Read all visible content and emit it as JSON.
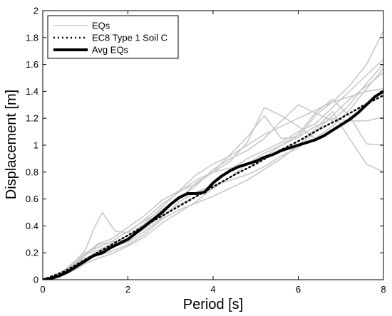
{
  "chart_data": {
    "type": "line",
    "title": "",
    "xlabel": "Period [s]",
    "ylabel": "Displacement [m]",
    "xlim": [
      0,
      8
    ],
    "ylim": [
      0,
      2
    ],
    "xticks": [
      0,
      2,
      4,
      6,
      8
    ],
    "xtick_labels": [
      "0",
      "2",
      "4",
      "6",
      "8"
    ],
    "yticks": [
      0,
      0.2,
      0.4,
      0.6,
      0.8,
      1,
      1.2,
      1.4,
      1.6,
      1.8,
      2
    ],
    "ytick_labels": [
      "0",
      "0.2",
      "0.4",
      "0.6",
      "0.8",
      "1",
      "1.2",
      "1.4",
      "1.6",
      "1.8",
      "2"
    ],
    "grid": false,
    "legend_position": "top-left",
    "legend": [
      "EQs",
      "EC8 Type 1 Soil C",
      "Avg EQs"
    ],
    "colors": {
      "eqs": "#c8c8c8",
      "ec8": "#000000",
      "avg": "#000000"
    },
    "series": [
      {
        "name": "EQs",
        "style": "thin-gray",
        "x": [
          0,
          0.2,
          0.5,
          0.8,
          1.0,
          1.2,
          1.4,
          1.7,
          2.0,
          2.4,
          2.8,
          3.2,
          3.6,
          4.0,
          4.4,
          4.8,
          5.2,
          5.6,
          6.0,
          6.4,
          6.8,
          7.2,
          7.6,
          8.0
        ],
        "y": [
          0,
          0.02,
          0.07,
          0.15,
          0.22,
          0.38,
          0.5,
          0.36,
          0.35,
          0.45,
          0.56,
          0.65,
          0.74,
          0.8,
          0.93,
          1.06,
          1.22,
          1.05,
          1.06,
          1.22,
          1.32,
          1.44,
          1.6,
          1.85
        ]
      },
      {
        "name": "EQs",
        "style": "thin-gray",
        "x": [
          0,
          0.2,
          0.5,
          0.8,
          1.0,
          1.3,
          1.6,
          2.0,
          2.4,
          2.8,
          3.2,
          3.6,
          4.0,
          4.4,
          4.8,
          5.2,
          5.6,
          6.0,
          6.4,
          6.8,
          7.2,
          7.6,
          8.0
        ],
        "y": [
          0,
          0.01,
          0.05,
          0.12,
          0.19,
          0.27,
          0.3,
          0.39,
          0.48,
          0.59,
          0.66,
          0.71,
          0.8,
          0.88,
          1.02,
          1.28,
          1.22,
          1.14,
          1.05,
          1.14,
          1.26,
          1.42,
          1.57
        ]
      },
      {
        "name": "EQs",
        "style": "thin-gray",
        "x": [
          0,
          0.2,
          0.5,
          0.8,
          1.0,
          1.3,
          1.6,
          2.0,
          2.4,
          2.8,
          3.2,
          3.6,
          4.0,
          4.4,
          4.8,
          5.2,
          5.6,
          6.0,
          6.4,
          6.8,
          7.2,
          7.6,
          8.0
        ],
        "y": [
          0,
          0.01,
          0.04,
          0.09,
          0.14,
          0.2,
          0.23,
          0.31,
          0.4,
          0.5,
          0.6,
          0.72,
          0.8,
          0.83,
          0.86,
          0.91,
          1.0,
          1.08,
          1.24,
          1.34,
          1.22,
          1.01,
          1.0
        ]
      },
      {
        "name": "EQs",
        "style": "thin-gray",
        "x": [
          0,
          0.2,
          0.5,
          0.8,
          1.0,
          1.3,
          1.6,
          2.0,
          2.4,
          2.8,
          3.2,
          3.6,
          4.0,
          4.4,
          4.8,
          5.2,
          5.6,
          6.0,
          6.4,
          6.8,
          7.2,
          7.6,
          8.0
        ],
        "y": [
          0,
          0.01,
          0.05,
          0.1,
          0.15,
          0.18,
          0.21,
          0.26,
          0.34,
          0.45,
          0.52,
          0.57,
          0.62,
          0.68,
          0.74,
          0.82,
          0.9,
          1.0,
          1.12,
          1.25,
          1.05,
          0.86,
          0.8
        ]
      },
      {
        "name": "EQs",
        "style": "thin-gray",
        "x": [
          0,
          0.2,
          0.5,
          0.8,
          1.0,
          1.3,
          1.6,
          2.0,
          2.4,
          2.8,
          3.2,
          3.6,
          4.0,
          4.4,
          4.8,
          5.2,
          5.6,
          6.0,
          6.4,
          6.8,
          7.2,
          7.6,
          8.0
        ],
        "y": [
          0,
          0.02,
          0.06,
          0.14,
          0.2,
          0.24,
          0.28,
          0.36,
          0.44,
          0.52,
          0.6,
          0.7,
          0.82,
          0.9,
          0.96,
          1.05,
          1.18,
          1.3,
          1.24,
          1.18,
          1.3,
          1.46,
          1.6
        ]
      },
      {
        "name": "EQs",
        "style": "thin-gray",
        "x": [
          0,
          0.2,
          0.5,
          0.8,
          1.0,
          1.3,
          1.6,
          2.0,
          2.4,
          2.8,
          3.2,
          3.6,
          4.0,
          4.4,
          4.8,
          5.2,
          5.6,
          6.0,
          6.4,
          6.8,
          7.2,
          7.6,
          8.0
        ],
        "y": [
          0,
          0.01,
          0.05,
          0.11,
          0.16,
          0.21,
          0.24,
          0.28,
          0.36,
          0.46,
          0.58,
          0.65,
          0.7,
          0.74,
          0.78,
          0.84,
          0.92,
          0.98,
          1.1,
          1.22,
          1.34,
          1.44,
          1.54
        ]
      },
      {
        "name": "EQs",
        "style": "thin-gray",
        "x": [
          0,
          0.2,
          0.5,
          0.8,
          1.0,
          1.3,
          1.6,
          2.0,
          2.4,
          2.8,
          3.2,
          3.6,
          4.0,
          4.4,
          4.8,
          5.2,
          5.6,
          6.0,
          6.4,
          6.8,
          7.2,
          7.6,
          8.0
        ],
        "y": [
          0,
          0.02,
          0.06,
          0.13,
          0.19,
          0.22,
          0.26,
          0.33,
          0.42,
          0.54,
          0.66,
          0.78,
          0.86,
          0.92,
          1.0,
          1.08,
          1.14,
          1.2,
          1.26,
          1.32,
          1.36,
          1.4,
          1.42
        ]
      },
      {
        "name": "EQs",
        "style": "thin-gray",
        "x": [
          0,
          0.2,
          0.5,
          0.8,
          1.0,
          1.3,
          1.6,
          2.0,
          2.4,
          2.8,
          3.2,
          3.6,
          4.0,
          4.4,
          4.8,
          5.2,
          5.6,
          6.0,
          6.4,
          6.8,
          7.2,
          7.6,
          8.0
        ],
        "y": [
          0,
          0.01,
          0.04,
          0.08,
          0.12,
          0.16,
          0.19,
          0.25,
          0.32,
          0.42,
          0.5,
          0.58,
          0.68,
          0.76,
          0.86,
          0.94,
          1.0,
          1.06,
          1.14,
          1.2,
          1.18,
          1.18,
          1.21
        ]
      },
      {
        "name": "EQs",
        "style": "thin-gray",
        "x": [
          0,
          0.2,
          0.5,
          0.8,
          1.0,
          1.3,
          1.6,
          2.0,
          2.4,
          2.8,
          3.2,
          3.6,
          4.0,
          4.4,
          4.8,
          5.2,
          5.6,
          6.0,
          6.4,
          6.8,
          7.2,
          7.6,
          8.0
        ],
        "y": [
          0,
          0.01,
          0.05,
          0.12,
          0.18,
          0.26,
          0.28,
          0.3,
          0.38,
          0.48,
          0.56,
          0.62,
          0.72,
          0.82,
          0.9,
          0.96,
          1.02,
          1.1,
          1.16,
          1.28,
          1.4,
          1.52,
          1.64
        ]
      },
      {
        "name": "EC8 Type 1 Soil C",
        "style": "dotted",
        "x": [
          0,
          0.5,
          1,
          1.5,
          2,
          2.5,
          3,
          3.5,
          4,
          4.5,
          5,
          5.5,
          6,
          6.5,
          7,
          7.5,
          8
        ],
        "y": [
          0,
          0.06,
          0.15,
          0.24,
          0.33,
          0.42,
          0.51,
          0.6,
          0.69,
          0.78,
          0.86,
          0.95,
          1.03,
          1.12,
          1.2,
          1.29,
          1.37
        ]
      },
      {
        "name": "Avg EQs",
        "style": "thick",
        "x": [
          0,
          0.2,
          0.4,
          0.6,
          0.8,
          1.0,
          1.2,
          1.4,
          1.6,
          1.8,
          2.0,
          2.2,
          2.4,
          2.6,
          2.8,
          3.0,
          3.2,
          3.4,
          3.6,
          3.8,
          4.0,
          4.2,
          4.4,
          4.6,
          4.8,
          5.0,
          5.2,
          5.4,
          5.6,
          5.8,
          6.0,
          6.2,
          6.4,
          6.6,
          6.8,
          7.0,
          7.2,
          7.4,
          7.6,
          7.8,
          8.0
        ],
        "y": [
          0,
          0.01,
          0.03,
          0.06,
          0.1,
          0.14,
          0.18,
          0.2,
          0.24,
          0.27,
          0.3,
          0.35,
          0.4,
          0.45,
          0.5,
          0.56,
          0.61,
          0.64,
          0.64,
          0.65,
          0.72,
          0.77,
          0.81,
          0.84,
          0.86,
          0.88,
          0.91,
          0.93,
          0.96,
          0.98,
          1.0,
          1.02,
          1.04,
          1.07,
          1.11,
          1.15,
          1.19,
          1.24,
          1.3,
          1.36,
          1.4
        ]
      }
    ]
  }
}
